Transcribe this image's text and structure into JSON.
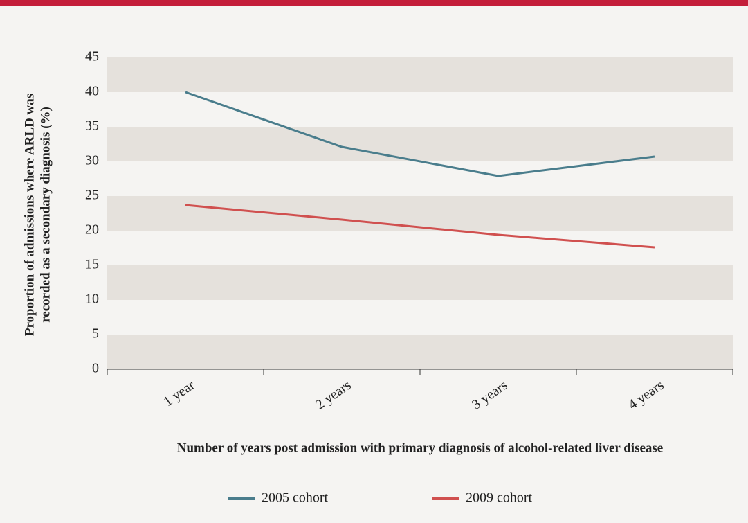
{
  "chart_data": {
    "type": "line",
    "categories": [
      "1 year",
      "2 years",
      "3 years",
      "4 years"
    ],
    "series": [
      {
        "name": "2005 cohort",
        "color": "#4a7d8c",
        "values": [
          40,
          32.1,
          27.9,
          30.7
        ]
      },
      {
        "name": "2009 cohort",
        "color": "#d0504f",
        "values": [
          23.7,
          21.6,
          19.4,
          17.6
        ]
      }
    ],
    "ylim": [
      0,
      45
    ],
    "yticks": [
      0,
      5,
      10,
      15,
      20,
      25,
      30,
      35,
      40,
      45
    ],
    "xlabel": "Number of years post admission with primary diagnosis of alcohol-related liver disease",
    "ylabel": [
      "Proportion of admissions where ARLD was",
      "recorded as a secondary diagnosis (%)"
    ],
    "grid": true,
    "legend": "bottom"
  }
}
